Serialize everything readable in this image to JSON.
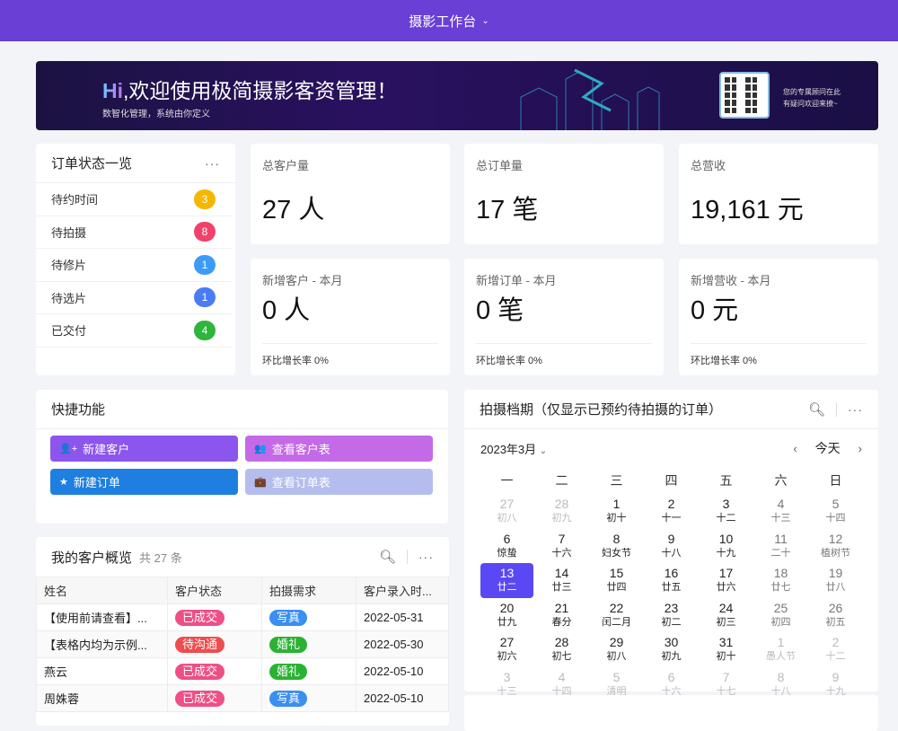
{
  "header": {
    "title": "摄影工作台"
  },
  "banner": {
    "hi": "Hi",
    "title": ",欢迎使用极简摄影客资管理！",
    "subtitle": "数智化管理，系统由你定义",
    "qr_text": [
      "您的专属顾问在此",
      "有疑问欢迎来撩~"
    ]
  },
  "order_status": {
    "title": "订单状态一览",
    "items": [
      {
        "label": "待约时间",
        "count": "3",
        "color": "#f5b800"
      },
      {
        "label": "待拍摄",
        "count": "8",
        "color": "#f0426a"
      },
      {
        "label": "待修片",
        "count": "1",
        "color": "#3c9cf5"
      },
      {
        "label": "待选片",
        "count": "1",
        "color": "#4a7cf6"
      },
      {
        "label": "已交付",
        "count": "4",
        "color": "#2db53c"
      }
    ]
  },
  "stats": [
    {
      "label": "总客户量",
      "value": "27 人"
    },
    {
      "label": "总订单量",
      "value": "17 笔"
    },
    {
      "label": "总营收",
      "value": "19,161 元"
    },
    {
      "label": "新增客户 - 本月",
      "value": "0 人",
      "rate": "环比增长率 0%"
    },
    {
      "label": "新增订单 - 本月",
      "value": "0 笔",
      "rate": "环比增长率 0%"
    },
    {
      "label": "新增营收 - 本月",
      "value": "0 元",
      "rate": "环比增长率 0%"
    }
  ],
  "quick": {
    "title": "快捷功能",
    "buttons": [
      {
        "label": "新建客户",
        "icon": "add-user-icon",
        "color": "#8b55ee"
      },
      {
        "label": "查看客户表",
        "icon": "users-icon",
        "color": "#c46ae8"
      },
      {
        "label": "新建订单",
        "icon": "star-icon",
        "color": "#1f7fe0"
      },
      {
        "label": "查看订单表",
        "icon": "briefcase-icon",
        "color": "#b5bdee"
      }
    ]
  },
  "customers": {
    "title": "我的客户概览",
    "count": "共 27 条",
    "columns": [
      "姓名",
      "客户状态",
      "拍摄需求",
      "客户录入时..."
    ],
    "rows": [
      {
        "name": "【使用前请查看】...",
        "status": "已成交",
        "status_color": "#ee4f86",
        "need": "写真",
        "need_color": "#3a8ff0",
        "date": "2022-05-31"
      },
      {
        "name": "【表格内均为示例...",
        "status": "待沟通",
        "status_color": "#ef4d4d",
        "need": "婚礼",
        "need_color": "#2bb232",
        "date": "2022-05-30"
      },
      {
        "name": "燕云",
        "status": "已成交",
        "status_color": "#ee4f86",
        "need": "婚礼",
        "need_color": "#2bb232",
        "date": "2022-05-10"
      },
      {
        "name": "周姝蓉",
        "status": "已成交",
        "status_color": "#ee4f86",
        "need": "写真",
        "need_color": "#3a8ff0",
        "date": "2022-05-10"
      }
    ]
  },
  "calendar": {
    "title": "拍摄档期（仅显示已预约待拍摄的订单）",
    "month": "2023年3月",
    "today": "今天",
    "selected": "13",
    "weekdays": [
      "一",
      "二",
      "三",
      "四",
      "五",
      "六",
      "日"
    ],
    "days": [
      [
        "27",
        "初八",
        1
      ],
      [
        "28",
        "初九",
        1
      ],
      [
        "1",
        "初十"
      ],
      [
        "2",
        "十一"
      ],
      [
        "3",
        "十二"
      ],
      [
        "4",
        "十三"
      ],
      [
        "5",
        "十四"
      ],
      [
        "6",
        "惊蛰"
      ],
      [
        "7",
        "十六"
      ],
      [
        "8",
        "妇女节"
      ],
      [
        "9",
        "十八"
      ],
      [
        "10",
        "十九"
      ],
      [
        "11",
        "二十"
      ],
      [
        "12",
        "植树节"
      ],
      [
        "13",
        "廿二"
      ],
      [
        "14",
        "廿三"
      ],
      [
        "15",
        "廿四"
      ],
      [
        "16",
        "廿五"
      ],
      [
        "17",
        "廿六"
      ],
      [
        "18",
        "廿七"
      ],
      [
        "19",
        "廿八"
      ],
      [
        "20",
        "廿九"
      ],
      [
        "21",
        "春分"
      ],
      [
        "22",
        "闰二月"
      ],
      [
        "23",
        "初二"
      ],
      [
        "24",
        "初三"
      ],
      [
        "25",
        "初四"
      ],
      [
        "26",
        "初五"
      ],
      [
        "27",
        "初六"
      ],
      [
        "28",
        "初七"
      ],
      [
        "29",
        "初八"
      ],
      [
        "30",
        "初九"
      ],
      [
        "31",
        "初十"
      ],
      [
        "1",
        "愚人节",
        1
      ],
      [
        "2",
        "十二",
        1
      ],
      [
        "3",
        "十三",
        1
      ],
      [
        "4",
        "十四",
        1
      ],
      [
        "5",
        "清明",
        1
      ],
      [
        "6",
        "十六",
        1
      ],
      [
        "7",
        "十七",
        1
      ],
      [
        "8",
        "十八",
        1
      ],
      [
        "9",
        "十九",
        1
      ]
    ]
  }
}
